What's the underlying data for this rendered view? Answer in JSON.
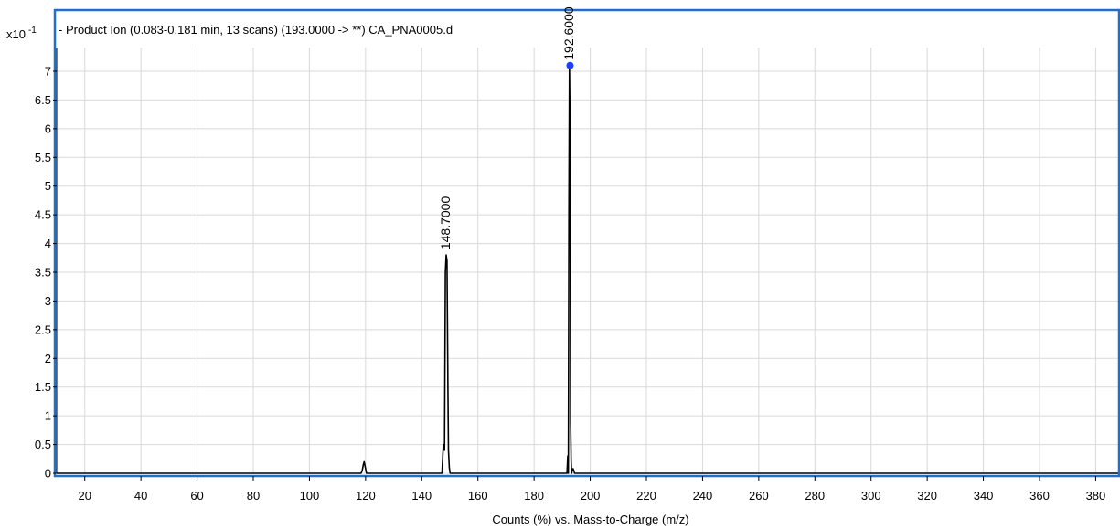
{
  "chart_data": {
    "type": "line",
    "title": "- Product Ion (0.083-0.181 min, 13 scans) (193.0000 -> **) CA_PNA0005.d",
    "y_multiplier_label": "x10",
    "y_multiplier_exponent": "-1",
    "xlabel": "Counts (%) vs. Mass-to-Charge (m/z)",
    "ylabel": "",
    "xlim": [
      10,
      388
    ],
    "ylim": [
      0,
      7.35
    ],
    "x_ticks": [
      20,
      40,
      60,
      80,
      100,
      120,
      140,
      160,
      180,
      200,
      220,
      240,
      260,
      280,
      300,
      320,
      340,
      360,
      380
    ],
    "y_ticks": [
      0,
      0.5,
      1,
      1.5,
      2,
      2.5,
      3,
      3.5,
      4,
      4.5,
      5,
      5.5,
      6,
      6.5,
      7
    ],
    "y_tick_labels": [
      "0",
      "0.5",
      "1",
      "1.5",
      "2",
      "2.5",
      "3",
      "3.5",
      "4",
      "4.5",
      "5",
      "5.5",
      "6",
      "6.5",
      "7"
    ],
    "grid": true,
    "series": [
      {
        "x": [
          10,
          118.4,
          118.8,
          119.2,
          119.5,
          119.9,
          120.3,
          147.2,
          147.5,
          147.7,
          148.1,
          148.4,
          148.7,
          149.0,
          149.3,
          149.5,
          149.8,
          150.1,
          191.7,
          192.0,
          192.2,
          192.4,
          192.6,
          192.8,
          193.0,
          193.2,
          193.4,
          193.6,
          193.9,
          194.2,
          194.4,
          388
        ],
        "y": [
          0,
          0,
          0.05,
          0.15,
          0.2,
          0.1,
          0,
          0,
          0.3,
          0.5,
          0.4,
          3.5,
          3.8,
          3.7,
          1.5,
          0.4,
          0.1,
          0,
          0,
          0.3,
          0,
          4.5,
          7.1,
          6.0,
          0.9,
          0.2,
          0,
          0.06,
          0.08,
          0.04,
          0,
          0
        ]
      }
    ],
    "peak_labels": [
      {
        "x": 148.7,
        "y": 3.8,
        "text": "148.7000"
      },
      {
        "x": 192.6,
        "y": 7.1,
        "text": "192.6000"
      }
    ],
    "marker": {
      "x": 192.8,
      "y": 7.1,
      "color": "#1f3fff"
    },
    "colors": {
      "frame": "#1f6fd1",
      "line": "#000000",
      "grid": "#d9d9d9",
      "marker": "#1f3fff"
    }
  }
}
